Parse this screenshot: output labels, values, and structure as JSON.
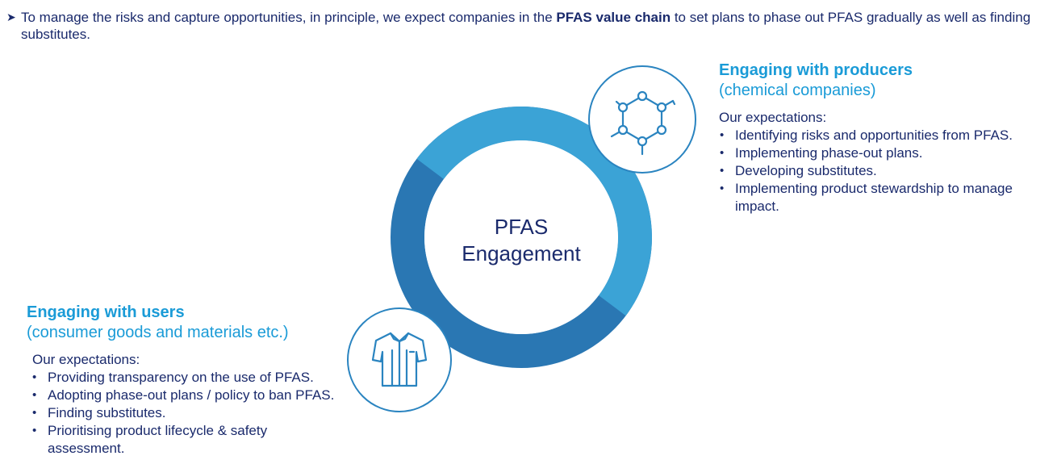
{
  "intro": {
    "bullet_icon": "arrow-bullet-icon",
    "text_before": "To manage the risks and capture opportunities, in principle, we expect companies in the ",
    "text_bold": "PFAS value chain",
    "text_after": " to set plans to phase out PFAS gradually as well as finding substitutes."
  },
  "center": {
    "line1": "PFAS",
    "line2": "Engagement"
  },
  "producers": {
    "icon": "molecule-icon",
    "title": "Engaging with producers",
    "subtitle": "(chemical companies)",
    "expectations_label": "Our expectations:",
    "items": [
      "Identifying risks and opportunities from PFAS.",
      "Implementing phase-out plans.",
      "Developing substitutes.",
      "Implementing product stewardship to manage impact."
    ]
  },
  "users": {
    "icon": "shirt-icon",
    "title": "Engaging with users",
    "subtitle": "(consumer goods and materials etc.)",
    "expectations_label": "Our expectations:",
    "items": [
      "Providing transparency on the use of PFAS.",
      "Adopting phase-out plans / policy to ban PFAS.",
      "Finding substitutes.",
      "Prioritising product lifecycle & safety assessment."
    ]
  },
  "colors": {
    "ring_light": "#3ba3d6",
    "ring_dark": "#2a77b3",
    "accent": "#1a9bd7",
    "text": "#1a2a6c",
    "icon_stroke": "#2a84c0"
  }
}
